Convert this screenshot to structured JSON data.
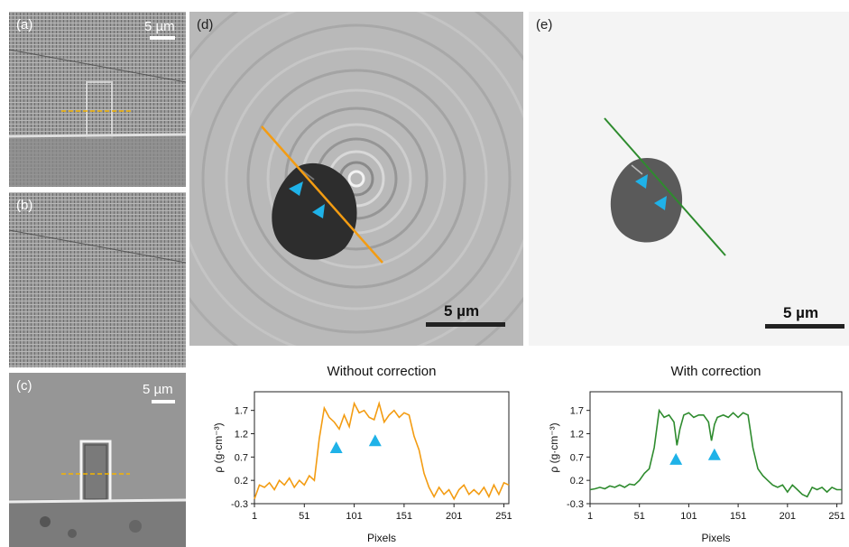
{
  "panels": {
    "a": {
      "label": "(a)",
      "scale": "5 µm"
    },
    "b": {
      "label": "(b)"
    },
    "c": {
      "label": "(c)",
      "scale": "5 µm"
    },
    "d": {
      "label": "(d)",
      "scale": "5 µm"
    },
    "e": {
      "label": "(e)",
      "scale": "5 µm"
    }
  },
  "colors": {
    "without_correction": "#f39c12",
    "with_correction": "#2e8b2e",
    "arrow": "#1fb2e8",
    "dashed_line": "#f5b400"
  },
  "chart_data": [
    {
      "type": "line",
      "title": "Without correction",
      "xlabel": "Pixels",
      "ylabel": "ρ (g·cm⁻³)",
      "xlim": [
        1,
        256
      ],
      "ylim": [
        -0.3,
        2.1
      ],
      "xticks": [
        1,
        51,
        101,
        151,
        201,
        251
      ],
      "yticks": [
        -0.3,
        0.2,
        0.7,
        1.2,
        1.7
      ],
      "series": [
        {
          "x": [
            1,
            6,
            11,
            16,
            21,
            26,
            31,
            36,
            41,
            46,
            51,
            56,
            61,
            66,
            71,
            76,
            81,
            86,
            91,
            96,
            101,
            106,
            111,
            116,
            121,
            126,
            131,
            136,
            141,
            146,
            151,
            156,
            161,
            166,
            171,
            176,
            181,
            186,
            191,
            196,
            201,
            206,
            211,
            216,
            221,
            226,
            231,
            236,
            241,
            246,
            251,
            256
          ],
          "values": [
            -0.2,
            0.1,
            0.05,
            0.15,
            0.0,
            0.2,
            0.1,
            0.25,
            0.05,
            0.2,
            0.1,
            0.3,
            0.2,
            1.1,
            1.75,
            1.55,
            1.45,
            1.3,
            1.6,
            1.35,
            1.85,
            1.65,
            1.7,
            1.55,
            1.5,
            1.85,
            1.45,
            1.6,
            1.7,
            1.55,
            1.65,
            1.6,
            1.15,
            0.85,
            0.35,
            0.05,
            -0.15,
            0.05,
            -0.1,
            0.0,
            -0.2,
            0.0,
            0.1,
            -0.1,
            0.0,
            -0.1,
            0.05,
            -0.15,
            0.1,
            -0.1,
            0.15,
            0.1
          ]
        }
      ],
      "markers": [
        {
          "x": 83,
          "y": 0.9
        },
        {
          "x": 122,
          "y": 1.05
        }
      ]
    },
    {
      "type": "line",
      "title": "With correction",
      "xlabel": "Pixels",
      "ylabel": "ρ (g·cm⁻³)",
      "xlim": [
        1,
        256
      ],
      "ylim": [
        -0.3,
        2.1
      ],
      "xticks": [
        1,
        51,
        101,
        151,
        201,
        251
      ],
      "yticks": [
        -0.3,
        0.2,
        0.7,
        1.2,
        1.7
      ],
      "series": [
        {
          "x": [
            1,
            6,
            11,
            16,
            21,
            26,
            31,
            36,
            41,
            46,
            51,
            56,
            61,
            66,
            71,
            76,
            81,
            86,
            89,
            92,
            96,
            101,
            106,
            111,
            116,
            121,
            124,
            127,
            130,
            136,
            141,
            146,
            151,
            156,
            161,
            166,
            171,
            176,
            181,
            186,
            191,
            196,
            201,
            206,
            211,
            216,
            221,
            226,
            231,
            236,
            241,
            246,
            251,
            256
          ],
          "values": [
            0.0,
            0.02,
            0.05,
            0.02,
            0.08,
            0.05,
            0.1,
            0.05,
            0.12,
            0.1,
            0.2,
            0.35,
            0.45,
            0.9,
            1.7,
            1.55,
            1.6,
            1.45,
            0.95,
            1.3,
            1.6,
            1.65,
            1.55,
            1.6,
            1.6,
            1.45,
            1.05,
            1.4,
            1.55,
            1.6,
            1.55,
            1.65,
            1.55,
            1.65,
            1.6,
            0.9,
            0.45,
            0.3,
            0.2,
            0.1,
            0.05,
            0.1,
            -0.05,
            0.1,
            0.0,
            -0.1,
            -0.15,
            0.05,
            0.0,
            0.05,
            -0.05,
            0.05,
            0.0,
            0.0
          ]
        }
      ],
      "markers": [
        {
          "x": 88,
          "y": 0.65
        },
        {
          "x": 127,
          "y": 0.75
        }
      ]
    }
  ]
}
